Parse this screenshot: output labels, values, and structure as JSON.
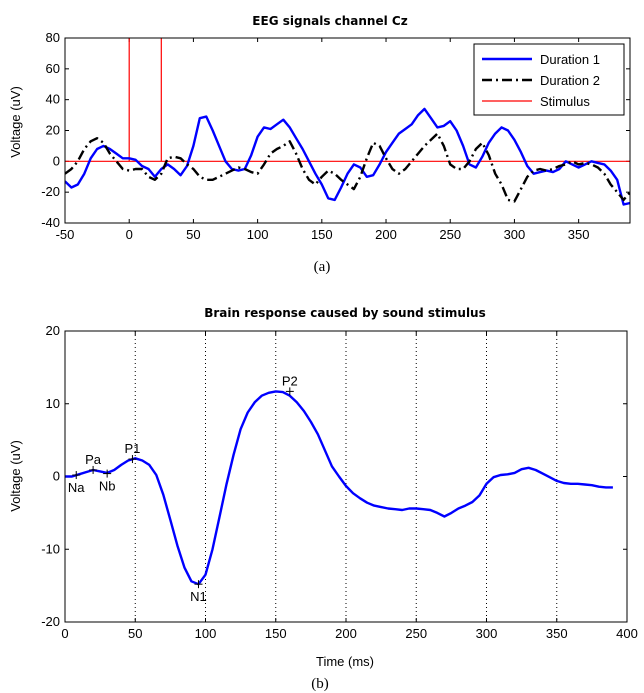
{
  "chart_data": [
    {
      "type": "line",
      "title": "EEG signals channel Cz",
      "xlabel": "",
      "ylabel": "Voltage (uV)",
      "xlim": [
        -50,
        390
      ],
      "ylim": [
        -40,
        80
      ],
      "xticks": [
        -50,
        0,
        50,
        100,
        150,
        200,
        250,
        300,
        350
      ],
      "yticks": [
        -40,
        -20,
        0,
        20,
        40,
        60,
        80
      ],
      "grid": false,
      "legend_position": "top-right",
      "caption": "(a)",
      "series": [
        {
          "name": "Duration 1",
          "color": "#0000ff",
          "style": "solid",
          "x": [
            -50,
            -45,
            -40,
            -35,
            -30,
            -25,
            -20,
            -15,
            -10,
            -5,
            0,
            5,
            10,
            15,
            20,
            25,
            30,
            35,
            40,
            45,
            50,
            55,
            60,
            65,
            70,
            75,
            80,
            85,
            90,
            95,
            100,
            105,
            110,
            115,
            120,
            125,
            130,
            135,
            140,
            145,
            150,
            155,
            160,
            165,
            170,
            175,
            180,
            185,
            190,
            195,
            200,
            205,
            210,
            215,
            220,
            225,
            230,
            235,
            240,
            245,
            250,
            255,
            260,
            265,
            270,
            275,
            280,
            285,
            290,
            295,
            300,
            305,
            310,
            315,
            320,
            325,
            330,
            335,
            340,
            345,
            350,
            355,
            360,
            365,
            370,
            375,
            380,
            385,
            390
          ],
          "y": [
            -13,
            -17,
            -15,
            -8,
            2,
            8,
            10,
            8,
            5,
            2,
            2,
            1,
            -3,
            -5,
            -10,
            -5,
            -2,
            -5,
            -9,
            -3,
            10,
            28,
            29,
            20,
            10,
            0,
            -5,
            -6,
            -5,
            4,
            16,
            22,
            21,
            24,
            27,
            22,
            15,
            8,
            0,
            -8,
            -15,
            -24,
            -25,
            -17,
            -8,
            -2,
            -4,
            -10,
            -9,
            -2,
            6,
            12,
            18,
            21,
            24,
            30,
            34,
            28,
            22,
            23,
            26,
            20,
            10,
            -2,
            -4,
            3,
            12,
            18,
            22,
            20,
            14,
            6,
            -3,
            -8,
            -7,
            -6,
            -7,
            -5,
            0,
            -2,
            -4,
            -2,
            0,
            -1,
            -2,
            -6,
            -12,
            -28,
            -27
          ]
        },
        {
          "name": "Duration 2",
          "color": "#000000",
          "style": "dashdot",
          "x": [
            -50,
            -45,
            -40,
            -35,
            -30,
            -25,
            -20,
            -15,
            -10,
            -5,
            0,
            5,
            10,
            15,
            20,
            25,
            30,
            35,
            40,
            45,
            50,
            55,
            60,
            65,
            70,
            75,
            80,
            85,
            90,
            95,
            100,
            105,
            110,
            115,
            120,
            125,
            130,
            135,
            140,
            145,
            150,
            155,
            160,
            165,
            170,
            175,
            180,
            185,
            190,
            195,
            200,
            205,
            210,
            215,
            220,
            225,
            230,
            235,
            240,
            245,
            250,
            255,
            260,
            265,
            270,
            275,
            280,
            285,
            290,
            295,
            300,
            305,
            310,
            315,
            320,
            325,
            330,
            335,
            340,
            345,
            350,
            355,
            360,
            365,
            370,
            375,
            380,
            385,
            390
          ],
          "y": [
            -8,
            -5,
            0,
            8,
            13,
            15,
            12,
            5,
            0,
            -5,
            -6,
            -5,
            -5,
            -10,
            -12,
            -8,
            2,
            3,
            2,
            -2,
            -5,
            -10,
            -12,
            -12,
            -10,
            -8,
            -6,
            -4,
            -5,
            -7,
            -8,
            -2,
            5,
            8,
            10,
            13,
            5,
            -5,
            -12,
            -15,
            -10,
            -6,
            -8,
            -12,
            -15,
            -18,
            -10,
            2,
            12,
            10,
            2,
            -5,
            -8,
            -5,
            0,
            5,
            10,
            14,
            18,
            10,
            -2,
            -5,
            -5,
            0,
            8,
            12,
            4,
            -8,
            -15,
            -25,
            -26,
            -18,
            -10,
            -6,
            -5,
            -6,
            -5,
            -3,
            -2,
            0,
            -2,
            -1,
            -2,
            -4,
            -8,
            -15,
            -20,
            -25,
            -20
          ]
        },
        {
          "name": "Stimulus",
          "color": "#ff0000",
          "style": "solid",
          "x": [
            -50,
            0,
            0,
            0,
            25,
            25,
            25,
            390
          ],
          "y": [
            0,
            0,
            80,
            0,
            0,
            80,
            0,
            0
          ]
        }
      ]
    },
    {
      "type": "line",
      "title": "Brain response caused by sound stimulus",
      "xlabel": "Time (ms)",
      "ylabel": "Voltage (uV)",
      "xlim": [
        0,
        400
      ],
      "ylim": [
        -20,
        20
      ],
      "xticks": [
        0,
        50,
        100,
        150,
        200,
        250,
        300,
        350,
        400
      ],
      "yticks": [
        -20,
        -10,
        0,
        10,
        20
      ],
      "vlines": [
        50,
        100,
        150,
        200,
        250,
        300,
        350
      ],
      "grid": false,
      "caption": "(b)",
      "series": [
        {
          "color": "#0000ff",
          "style": "solid",
          "x": [
            0,
            5,
            10,
            15,
            20,
            25,
            30,
            35,
            40,
            45,
            50,
            55,
            60,
            65,
            70,
            75,
            80,
            85,
            90,
            95,
            100,
            105,
            110,
            115,
            120,
            125,
            130,
            135,
            140,
            145,
            150,
            155,
            160,
            165,
            170,
            175,
            180,
            185,
            190,
            195,
            200,
            205,
            210,
            215,
            220,
            225,
            230,
            235,
            240,
            245,
            250,
            255,
            260,
            265,
            270,
            275,
            280,
            285,
            290,
            295,
            300,
            305,
            310,
            315,
            320,
            325,
            330,
            335,
            340,
            345,
            350,
            355,
            360,
            365,
            370,
            375,
            380,
            385,
            390
          ],
          "y": [
            0,
            0,
            0.3,
            0.6,
            0.9,
            0.7,
            0.5,
            0.9,
            1.6,
            2.2,
            2.5,
            2.2,
            1.6,
            0.2,
            -2.5,
            -6,
            -9.5,
            -12.5,
            -14.4,
            -14.8,
            -13.5,
            -10,
            -5.5,
            -1,
            3,
            6.5,
            8.8,
            10.2,
            11.1,
            11.5,
            11.7,
            11.6,
            11.1,
            10.2,
            9,
            7.5,
            5.8,
            3.6,
            1.4,
            0,
            -1.3,
            -2.3,
            -3,
            -3.6,
            -4,
            -4.2,
            -4.4,
            -4.5,
            -4.6,
            -4.4,
            -4.4,
            -4.5,
            -4.6,
            -5,
            -5.5,
            -5,
            -4.4,
            -4,
            -3.5,
            -2.6,
            -1,
            -0.1,
            0.2,
            0.3,
            0.5,
            1,
            1.2,
            0.9,
            0.4,
            -0.1,
            -0.6,
            -0.9,
            -1,
            -1,
            -1.1,
            -1.2,
            -1.4,
            -1.5,
            -1.5
          ]
        }
      ],
      "annotations": [
        {
          "label": "Na",
          "x": 8,
          "y": 0.2
        },
        {
          "label": "Pa",
          "x": 20,
          "y": 0.9
        },
        {
          "label": "Nb",
          "x": 30,
          "y": 0.4
        },
        {
          "label": "P1",
          "x": 48,
          "y": 2.4
        },
        {
          "label": "N1",
          "x": 95,
          "y": -14.8
        },
        {
          "label": "P2",
          "x": 160,
          "y": 11.7
        }
      ]
    }
  ]
}
